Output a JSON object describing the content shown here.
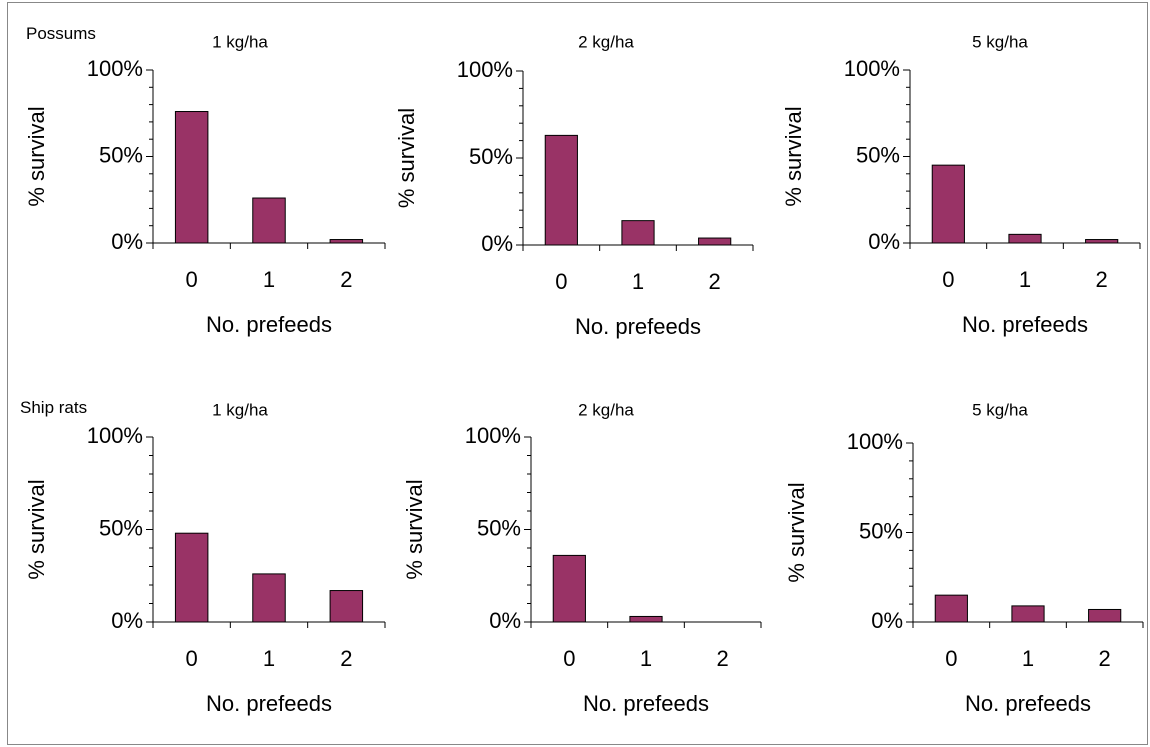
{
  "figure": {
    "rows": [
      {
        "label": "Possums"
      },
      {
        "label": "Ship rats"
      }
    ]
  },
  "chart_data": [
    {
      "type": "bar",
      "group": "Possums",
      "title": "1  kg/ha",
      "xlabel": "No. prefeeds",
      "ylabel": "% survival",
      "categories": [
        "0",
        "1",
        "2"
      ],
      "values": [
        76,
        26,
        2
      ],
      "ylim": [
        0,
        100
      ],
      "yticks": [
        "0%",
        "50%",
        "100%"
      ],
      "bar_color": "#993366"
    },
    {
      "type": "bar",
      "group": "Possums",
      "title": "2 kg/ha",
      "xlabel": "No. prefeeds",
      "ylabel": "% survival",
      "categories": [
        "0",
        "1",
        "2"
      ],
      "values": [
        63,
        14,
        4
      ],
      "ylim": [
        0,
        100
      ],
      "yticks": [
        "0%",
        "50%",
        "100%"
      ],
      "bar_color": "#993366"
    },
    {
      "type": "bar",
      "group": "Possums",
      "title": "5 kg/ha",
      "xlabel": "No. prefeeds",
      "ylabel": "% survival",
      "categories": [
        "0",
        "1",
        "2"
      ],
      "values": [
        45,
        5,
        2
      ],
      "ylim": [
        0,
        100
      ],
      "yticks": [
        "0%",
        "50%",
        "100%"
      ],
      "bar_color": "#993366"
    },
    {
      "type": "bar",
      "group": "Ship rats",
      "title": "1  kg/ha",
      "xlabel": "No. prefeeds",
      "ylabel": "% survival",
      "categories": [
        "0",
        "1",
        "2"
      ],
      "values": [
        48,
        26,
        17
      ],
      "ylim": [
        0,
        100
      ],
      "yticks": [
        "0%",
        "50%",
        "100%"
      ],
      "bar_color": "#993366"
    },
    {
      "type": "bar",
      "group": "Ship rats",
      "title": "2 kg/ha",
      "xlabel": "No. prefeeds",
      "ylabel": "% survival",
      "categories": [
        "0",
        "1",
        "2"
      ],
      "values": [
        36,
        3,
        0
      ],
      "ylim": [
        0,
        100
      ],
      "yticks": [
        "0%",
        "50%",
        "100%"
      ],
      "bar_color": "#993366"
    },
    {
      "type": "bar",
      "group": "Ship rats",
      "title": "5 kg/ha",
      "xlabel": "No. prefeeds",
      "ylabel": "% survival",
      "categories": [
        "0",
        "1",
        "2"
      ],
      "values": [
        15,
        9,
        7
      ],
      "ylim": [
        0,
        100
      ],
      "yticks": [
        "0%",
        "50%",
        "100%"
      ],
      "bar_color": "#993366"
    }
  ]
}
